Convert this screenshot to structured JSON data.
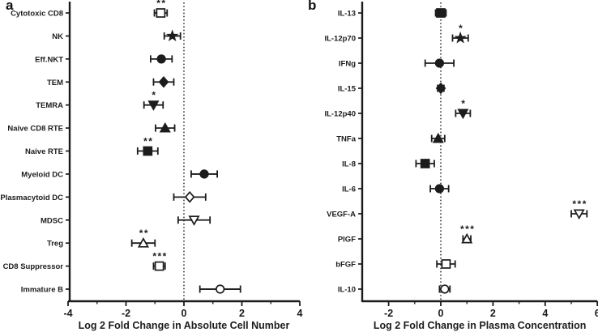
{
  "figure_title": "Forest plots of log2 fold changes",
  "ink_color": "#1c1c1c",
  "chart_data": [
    {
      "type": "scatter",
      "panel_label": "a",
      "xlabel": "Log 2 Fold Change in Absolute Cell Number",
      "xlim": [
        -4,
        4
      ],
      "xticks": [
        -4,
        -2,
        0,
        2,
        4
      ],
      "minor_ticks": [
        -3,
        -1,
        1,
        3
      ],
      "zero_line": "dotted",
      "rows": [
        {
          "label": "Cytotoxic CD8",
          "value": -0.8,
          "error": 0.22,
          "marker": "square",
          "fill": "open",
          "sig": "**"
        },
        {
          "label": "NK",
          "value": -0.4,
          "error": 0.28,
          "marker": "star",
          "fill": "solid",
          "sig": ""
        },
        {
          "label": "Eff.NKT",
          "value": -0.78,
          "error": 0.37,
          "marker": "circle",
          "fill": "solid",
          "sig": ""
        },
        {
          "label": "TEM",
          "value": -0.7,
          "error": 0.35,
          "marker": "diamond",
          "fill": "solid",
          "sig": ""
        },
        {
          "label": "TEMRA",
          "value": -1.05,
          "error": 0.33,
          "marker": "triangle-down",
          "fill": "solid",
          "sig": "*"
        },
        {
          "label": "Naive CD8 RTE",
          "value": -0.65,
          "error": 0.33,
          "marker": "triangle-up",
          "fill": "solid",
          "sig": ""
        },
        {
          "label": "Naive RTE",
          "value": -1.25,
          "error": 0.35,
          "marker": "square",
          "fill": "solid",
          "sig": "**"
        },
        {
          "label": "Myeloid DC",
          "value": 0.7,
          "error": 0.45,
          "marker": "circle",
          "fill": "solid",
          "sig": ""
        },
        {
          "label": "Plasmacytoid DC",
          "value": 0.2,
          "error": 0.55,
          "marker": "diamond",
          "fill": "open",
          "sig": ""
        },
        {
          "label": "MDSC",
          "value": 0.35,
          "error": 0.55,
          "marker": "triangle-down",
          "fill": "open",
          "sig": ""
        },
        {
          "label": "Treg",
          "value": -1.4,
          "error": 0.4,
          "marker": "triangle-up",
          "fill": "open",
          "sig": "**"
        },
        {
          "label": "CD8 Suppressor",
          "value": -0.85,
          "error": 0.2,
          "marker": "square",
          "fill": "open",
          "sig": "***"
        },
        {
          "label": "Immature B",
          "value": 1.25,
          "error": 0.7,
          "marker": "circle",
          "fill": "open",
          "sig": ""
        }
      ]
    },
    {
      "type": "scatter",
      "panel_label": "b",
      "xlabel": "Log 2 Fold Change in Plasma Concentration",
      "xlim": [
        -3,
        6
      ],
      "xticks": [
        -2,
        0,
        2,
        4,
        6
      ],
      "minor_ticks": [
        -1,
        1,
        3,
        5
      ],
      "zero_line": "dotted",
      "rows": [
        {
          "label": "IL-13",
          "value": 0.0,
          "error": 0.2,
          "marker": "square",
          "fill": "solid",
          "sig": ""
        },
        {
          "label": "IL-12p70",
          "value": 0.75,
          "error": 0.3,
          "marker": "star",
          "fill": "solid",
          "sig": "*"
        },
        {
          "label": "IFNg",
          "value": -0.05,
          "error": 0.55,
          "marker": "circle",
          "fill": "solid",
          "sig": ""
        },
        {
          "label": "IL-15",
          "value": 0.0,
          "error": 0.12,
          "marker": "diamond",
          "fill": "solid",
          "sig": ""
        },
        {
          "label": "IL-12p40",
          "value": 0.85,
          "error": 0.28,
          "marker": "triangle-down",
          "fill": "solid",
          "sig": "*"
        },
        {
          "label": "TNFa",
          "value": -0.1,
          "error": 0.25,
          "marker": "triangle-up",
          "fill": "solid",
          "sig": ""
        },
        {
          "label": "IL-8",
          "value": -0.6,
          "error": 0.35,
          "marker": "square",
          "fill": "solid",
          "sig": ""
        },
        {
          "label": "IL-6",
          "value": -0.05,
          "error": 0.35,
          "marker": "circle",
          "fill": "solid",
          "sig": ""
        },
        {
          "label": "VEGF-A",
          "value": 5.3,
          "error": 0.3,
          "marker": "triangle-down",
          "fill": "open",
          "sig": "***"
        },
        {
          "label": "PlGF",
          "value": 1.0,
          "error": 0.15,
          "marker": "triangle-up",
          "fill": "open",
          "sig": "***"
        },
        {
          "label": "bFGF",
          "value": 0.2,
          "error": 0.35,
          "marker": "square",
          "fill": "open",
          "sig": ""
        },
        {
          "label": "IL-10",
          "value": 0.15,
          "error": 0.2,
          "marker": "circle",
          "fill": "open",
          "sig": ""
        }
      ]
    }
  ]
}
